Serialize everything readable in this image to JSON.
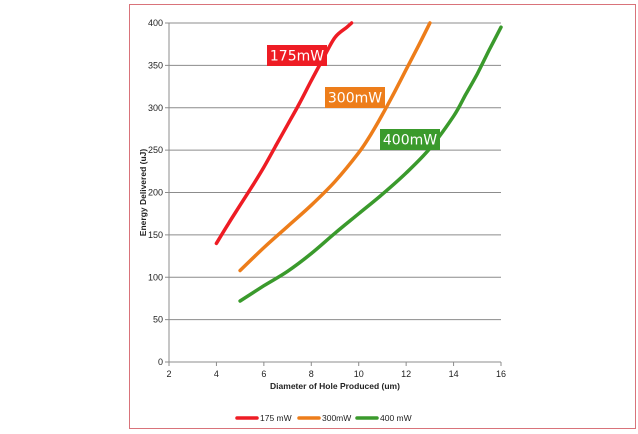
{
  "chart_data": {
    "type": "line",
    "xlabel": "Diameter of Hole Produced (um)",
    "ylabel": "Energy Delivered (uJ)",
    "xlim": [
      2,
      16
    ],
    "ylim": [
      0,
      400
    ],
    "xticks": [
      "2",
      "4",
      "6",
      "8",
      "10",
      "12",
      "14",
      "16"
    ],
    "yticks": [
      "0",
      "50",
      "100",
      "150",
      "200",
      "250",
      "300",
      "350",
      "400"
    ],
    "grid": "horizontal",
    "legend_position": "bottom",
    "series": [
      {
        "name": "175 mW",
        "callout": "175mW",
        "color": "#ee1c24",
        "x": [
          4.0,
          4.5,
          5.0,
          5.5,
          6.0,
          6.5,
          7.0,
          7.5,
          8.0,
          8.5,
          9.0,
          9.5,
          9.7
        ],
        "y": [
          140,
          163,
          185,
          207,
          230,
          255,
          280,
          305,
          332,
          358,
          383,
          395,
          400
        ]
      },
      {
        "name": "300mW",
        "callout": "300mW",
        "color": "#ed7d1a",
        "x": [
          5.0,
          6.0,
          7.0,
          8.0,
          9.0,
          10.0,
          10.5,
          11.0,
          11.5,
          12.0,
          12.5,
          13.0
        ],
        "y": [
          108,
          135,
          160,
          185,
          213,
          247,
          268,
          292,
          318,
          345,
          372,
          400
        ]
      },
      {
        "name": "400 mW",
        "callout": "400mW",
        "color": "#3a9a2c",
        "x": [
          5.0,
          6.0,
          7.0,
          8.0,
          9.0,
          10.0,
          11.0,
          12.0,
          13.0,
          14.0,
          14.5,
          15.0,
          15.5,
          16.0
        ],
        "y": [
          72,
          90,
          107,
          128,
          152,
          175,
          198,
          223,
          252,
          290,
          315,
          340,
          368,
          395
        ]
      }
    ]
  }
}
